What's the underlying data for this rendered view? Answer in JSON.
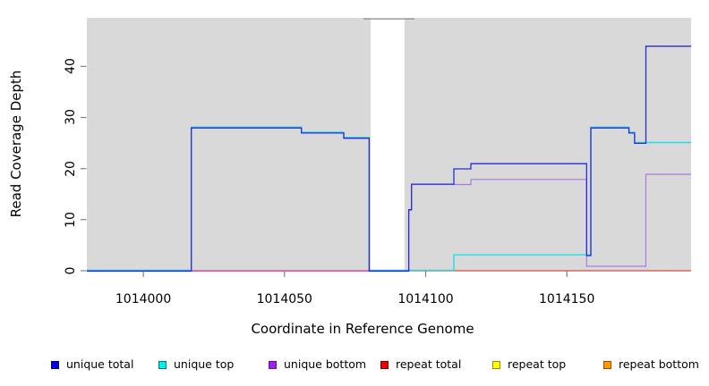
{
  "chart_data": {
    "type": "line",
    "title": "",
    "xlabel": "Coordinate in Reference Genome",
    "ylabel": "Read Coverage Depth",
    "xlim": [
      1013980,
      1014194
    ],
    "ylim": [
      0,
      49.5
    ],
    "x_tick_labels": [
      "1014000",
      "1014050",
      "1014100",
      "1014150"
    ],
    "x_tick_values": [
      1014000,
      1014050,
      1014100,
      1014150
    ],
    "y_tick_labels": [
      "0",
      "10",
      "20",
      "30",
      "40"
    ],
    "y_tick_values": [
      0,
      10,
      20,
      30,
      40
    ],
    "grid": false,
    "legend_position": "bottom",
    "plot_bg_color": "#d9d9d9",
    "tick_color": "#808080",
    "covered_regions": [
      {
        "from": 1013980,
        "to": 1014080.5
      },
      {
        "from": 1014092.5,
        "to": 1014194
      }
    ],
    "gap_top_connector": {
      "from": 1014078,
      "to": 1014096,
      "value": 49.3,
      "color": "#9a9a9a"
    },
    "series": [
      {
        "name": "unique total",
        "color": "#2b2bd6",
        "legend_fill": "#0000ee",
        "legend_border": "#00007a",
        "width": 1.3,
        "dy": 0.3,
        "points": [
          [
            1013980,
            0
          ],
          [
            1014017,
            0
          ],
          [
            1014017,
            28
          ],
          [
            1014056,
            28
          ],
          [
            1014056,
            27
          ],
          [
            1014071,
            27
          ],
          [
            1014071,
            26
          ],
          [
            1014080,
            26
          ],
          [
            1014080,
            0
          ],
          [
            1014094,
            0
          ],
          [
            1014094,
            12
          ],
          [
            1014095,
            12
          ],
          [
            1014095,
            17
          ],
          [
            1014110,
            17
          ],
          [
            1014110,
            20
          ],
          [
            1014116,
            20
          ],
          [
            1014116,
            21
          ],
          [
            1014157,
            21
          ],
          [
            1014157,
            3
          ],
          [
            1014158.5,
            3
          ],
          [
            1014158.5,
            28
          ],
          [
            1014172,
            28
          ],
          [
            1014172,
            27
          ],
          [
            1014174,
            27
          ],
          [
            1014174,
            25
          ],
          [
            1014178,
            25
          ],
          [
            1014178,
            44
          ],
          [
            1014194,
            44
          ]
        ]
      },
      {
        "name": "unique top",
        "color": "#1edfe8",
        "legend_fill": "#00eeee",
        "legend_border": "#007a80",
        "width": 1.4,
        "dy": -0.6,
        "points": [
          [
            1013980,
            0
          ],
          [
            1014017,
            0
          ],
          [
            1014017,
            28
          ],
          [
            1014056,
            28
          ],
          [
            1014056,
            27
          ],
          [
            1014071,
            27
          ],
          [
            1014071,
            26
          ],
          [
            1014080,
            26
          ],
          [
            1014080,
            0
          ],
          [
            1014110,
            0
          ],
          [
            1014110,
            3
          ],
          [
            1014158.5,
            3
          ],
          [
            1014158.5,
            28
          ],
          [
            1014172,
            28
          ],
          [
            1014172,
            27
          ],
          [
            1014174,
            27
          ],
          [
            1014174,
            25
          ],
          [
            1014194,
            25
          ]
        ]
      },
      {
        "name": "unique bottom",
        "color": "#a87be0",
        "legend_fill": "#a020f0",
        "legend_border": "#581a8b",
        "width": 1.2,
        "dy": 0.7,
        "points": [
          [
            1013980,
            0
          ],
          [
            1014094,
            0
          ],
          [
            1014094,
            12
          ],
          [
            1014095,
            12
          ],
          [
            1014095,
            17
          ],
          [
            1014116,
            17
          ],
          [
            1014116,
            18
          ],
          [
            1014157,
            18
          ],
          [
            1014157,
            1
          ],
          [
            1014178,
            1
          ],
          [
            1014178,
            19
          ],
          [
            1014194,
            19
          ]
        ]
      },
      {
        "name": "repeat total",
        "color": "#e0485e",
        "legend_fill": "#ee0000",
        "legend_border": "#7a0000",
        "width": 1.2,
        "dy": 0,
        "points": [
          [
            1013980,
            0
          ],
          [
            1014194,
            0
          ]
        ]
      },
      {
        "name": "repeat top",
        "color": "#f0f000",
        "legend_fill": "#ffff00",
        "legend_border": "#8c8c00",
        "width": 1.2,
        "dy": 0,
        "points": [
          [
            1013980,
            0
          ],
          [
            1014194,
            0
          ]
        ]
      },
      {
        "name": "repeat bottom",
        "color": "#ff9d00",
        "legend_fill": "#ff9900",
        "legend_border": "#8c5400",
        "width": 1.6,
        "dy": 1.0,
        "points": [
          [
            1013980,
            0
          ],
          [
            1014194,
            0
          ]
        ]
      }
    ],
    "draw_order": [
      {
        "series": 4
      },
      {
        "series": 5,
        "to": 1014080.5
      },
      {
        "series": 3
      },
      {
        "series": 5,
        "from": 1014092.5
      },
      {
        "series": 2
      },
      {
        "series": 1
      },
      {
        "series": 0
      }
    ]
  }
}
